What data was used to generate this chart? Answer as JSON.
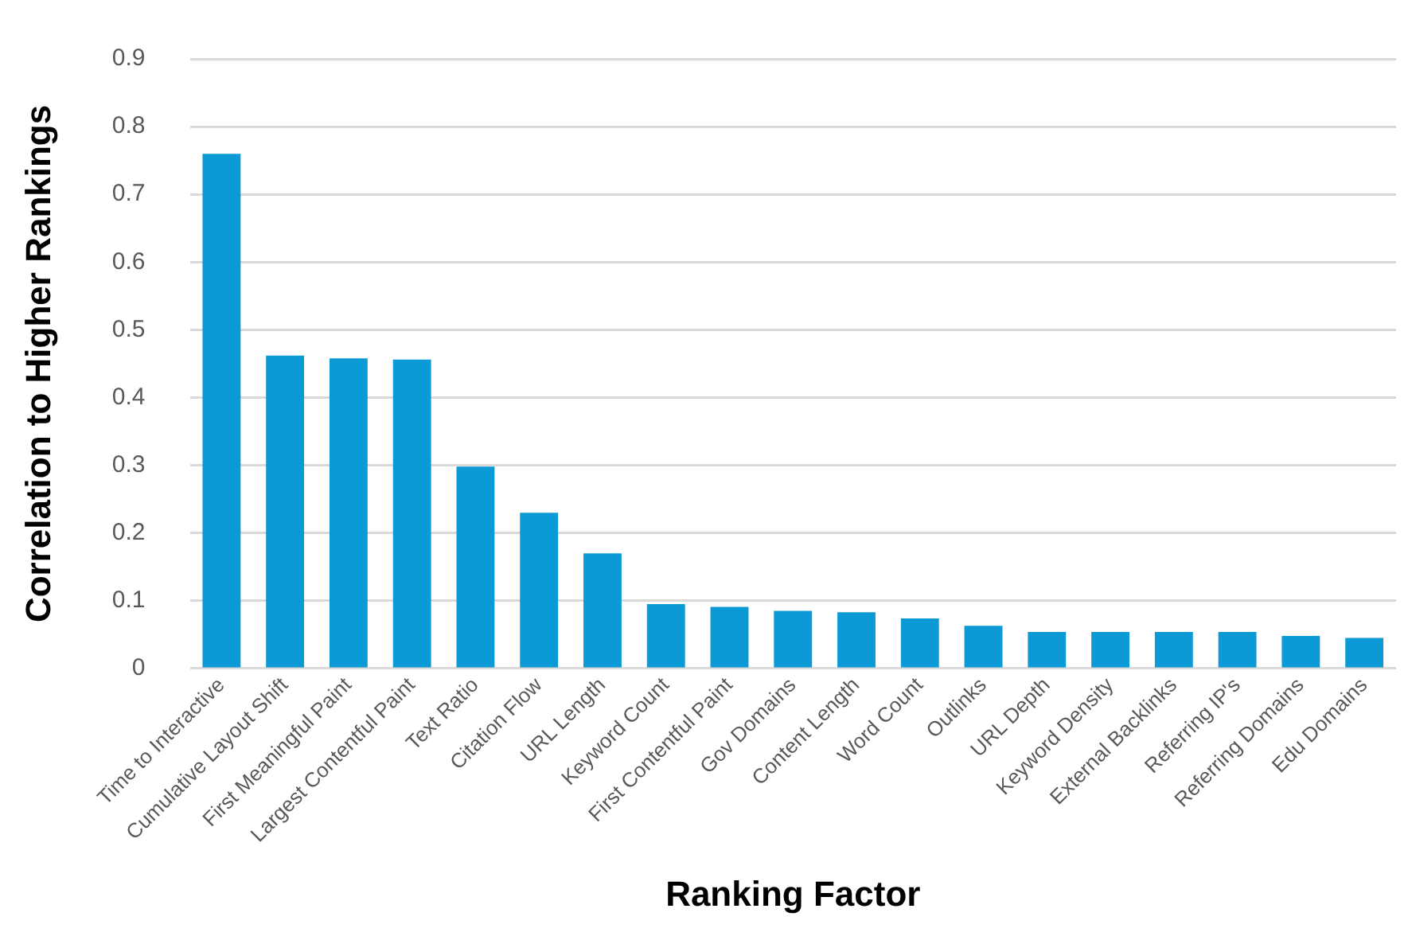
{
  "chart_data": {
    "type": "bar",
    "xlabel": "Ranking Factor",
    "ylabel": "Correlation to Higher Rankings",
    "categories": [
      "Time to Interactive",
      "Cumulative Layout Shift",
      "First Meaningful Paint",
      "Largest Contentful Paint",
      "Text Ratio",
      "Citation Flow",
      "URL Length",
      "Keyword Count",
      "First Contentful Paint",
      "Gov Domains",
      "Content Length",
      "Word Count",
      "Outlinks",
      "URL Depth",
      "Keyword Density",
      "External Backlinks",
      "Referring IP's",
      "Referring Domains",
      "Edu Domains"
    ],
    "values": [
      0.76,
      0.462,
      0.458,
      0.456,
      0.298,
      0.23,
      0.17,
      0.095,
      0.091,
      0.085,
      0.083,
      0.074,
      0.063,
      0.054,
      0.054,
      0.054,
      0.054,
      0.048,
      0.045
    ],
    "color": "#0b9ad6",
    "ylim": [
      0,
      0.9
    ],
    "yticks": [
      0,
      0.1,
      0.2,
      0.3,
      0.4,
      0.5,
      0.6,
      0.7,
      0.8,
      0.9
    ],
    "grid": "y"
  }
}
